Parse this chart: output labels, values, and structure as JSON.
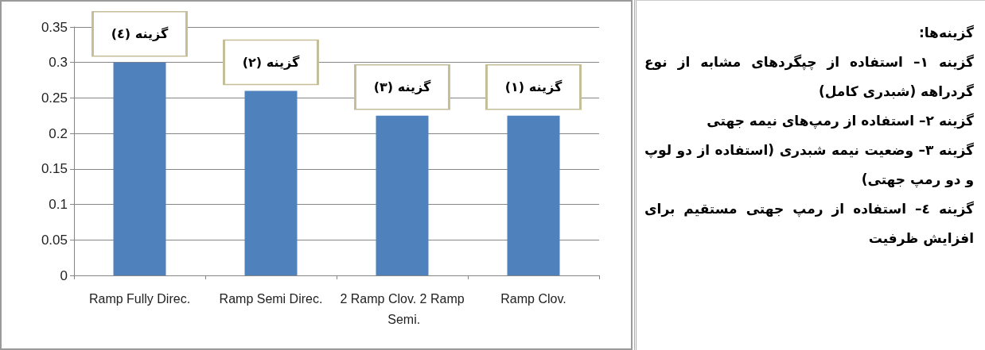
{
  "chart_data": [
    {
      "type": "bar",
      "categories": [
        "Ramp Fully Direc.",
        "Ramp Semi Direc.",
        "2 Ramp Clov. 2 Ramp Semi.",
        "Ramp Clov."
      ],
      "values": [
        0.3,
        0.26,
        0.225,
        0.225
      ],
      "color": "#4f81bd",
      "ylim": [
        0,
        0.35
      ],
      "yticks": [
        0,
        0.05,
        0.1,
        0.15,
        0.2,
        0.25,
        0.3,
        0.35
      ],
      "grid": "y",
      "annotations": [
        {
          "text": "گزینه (٤)",
          "x": "Ramp Fully Direc.",
          "y": 0.3
        },
        {
          "text": "گزینه (۲)",
          "x": "Ramp Semi Direc.",
          "y": 0.26
        },
        {
          "text": "گزینه (۳)",
          "x": "2 Ramp Clov. 2 Ramp Semi.",
          "y": 0.225
        },
        {
          "text": "گزینه (۱)",
          "x": "Ramp Clov.",
          "y": 0.225
        }
      ]
    },
    {
      "type": "other",
      "title": "گزینه‌ها:",
      "annotations": [
        "گزینه ۱– استفاده از چپگردهای مشابه از نوع گردراهه (شبدری کامل)",
        "گزینه ۲– استفاده از رمپ‌های نیمه جهتی",
        "گزینه ۳– وضعیت نیمه شبدری (استفاده از دو لوپ و دو رمپ جهتی)",
        "گزینه ٤– استفاده از رمپ جهتی مستقیم برای افزایش ظرفیت"
      ]
    }
  ]
}
